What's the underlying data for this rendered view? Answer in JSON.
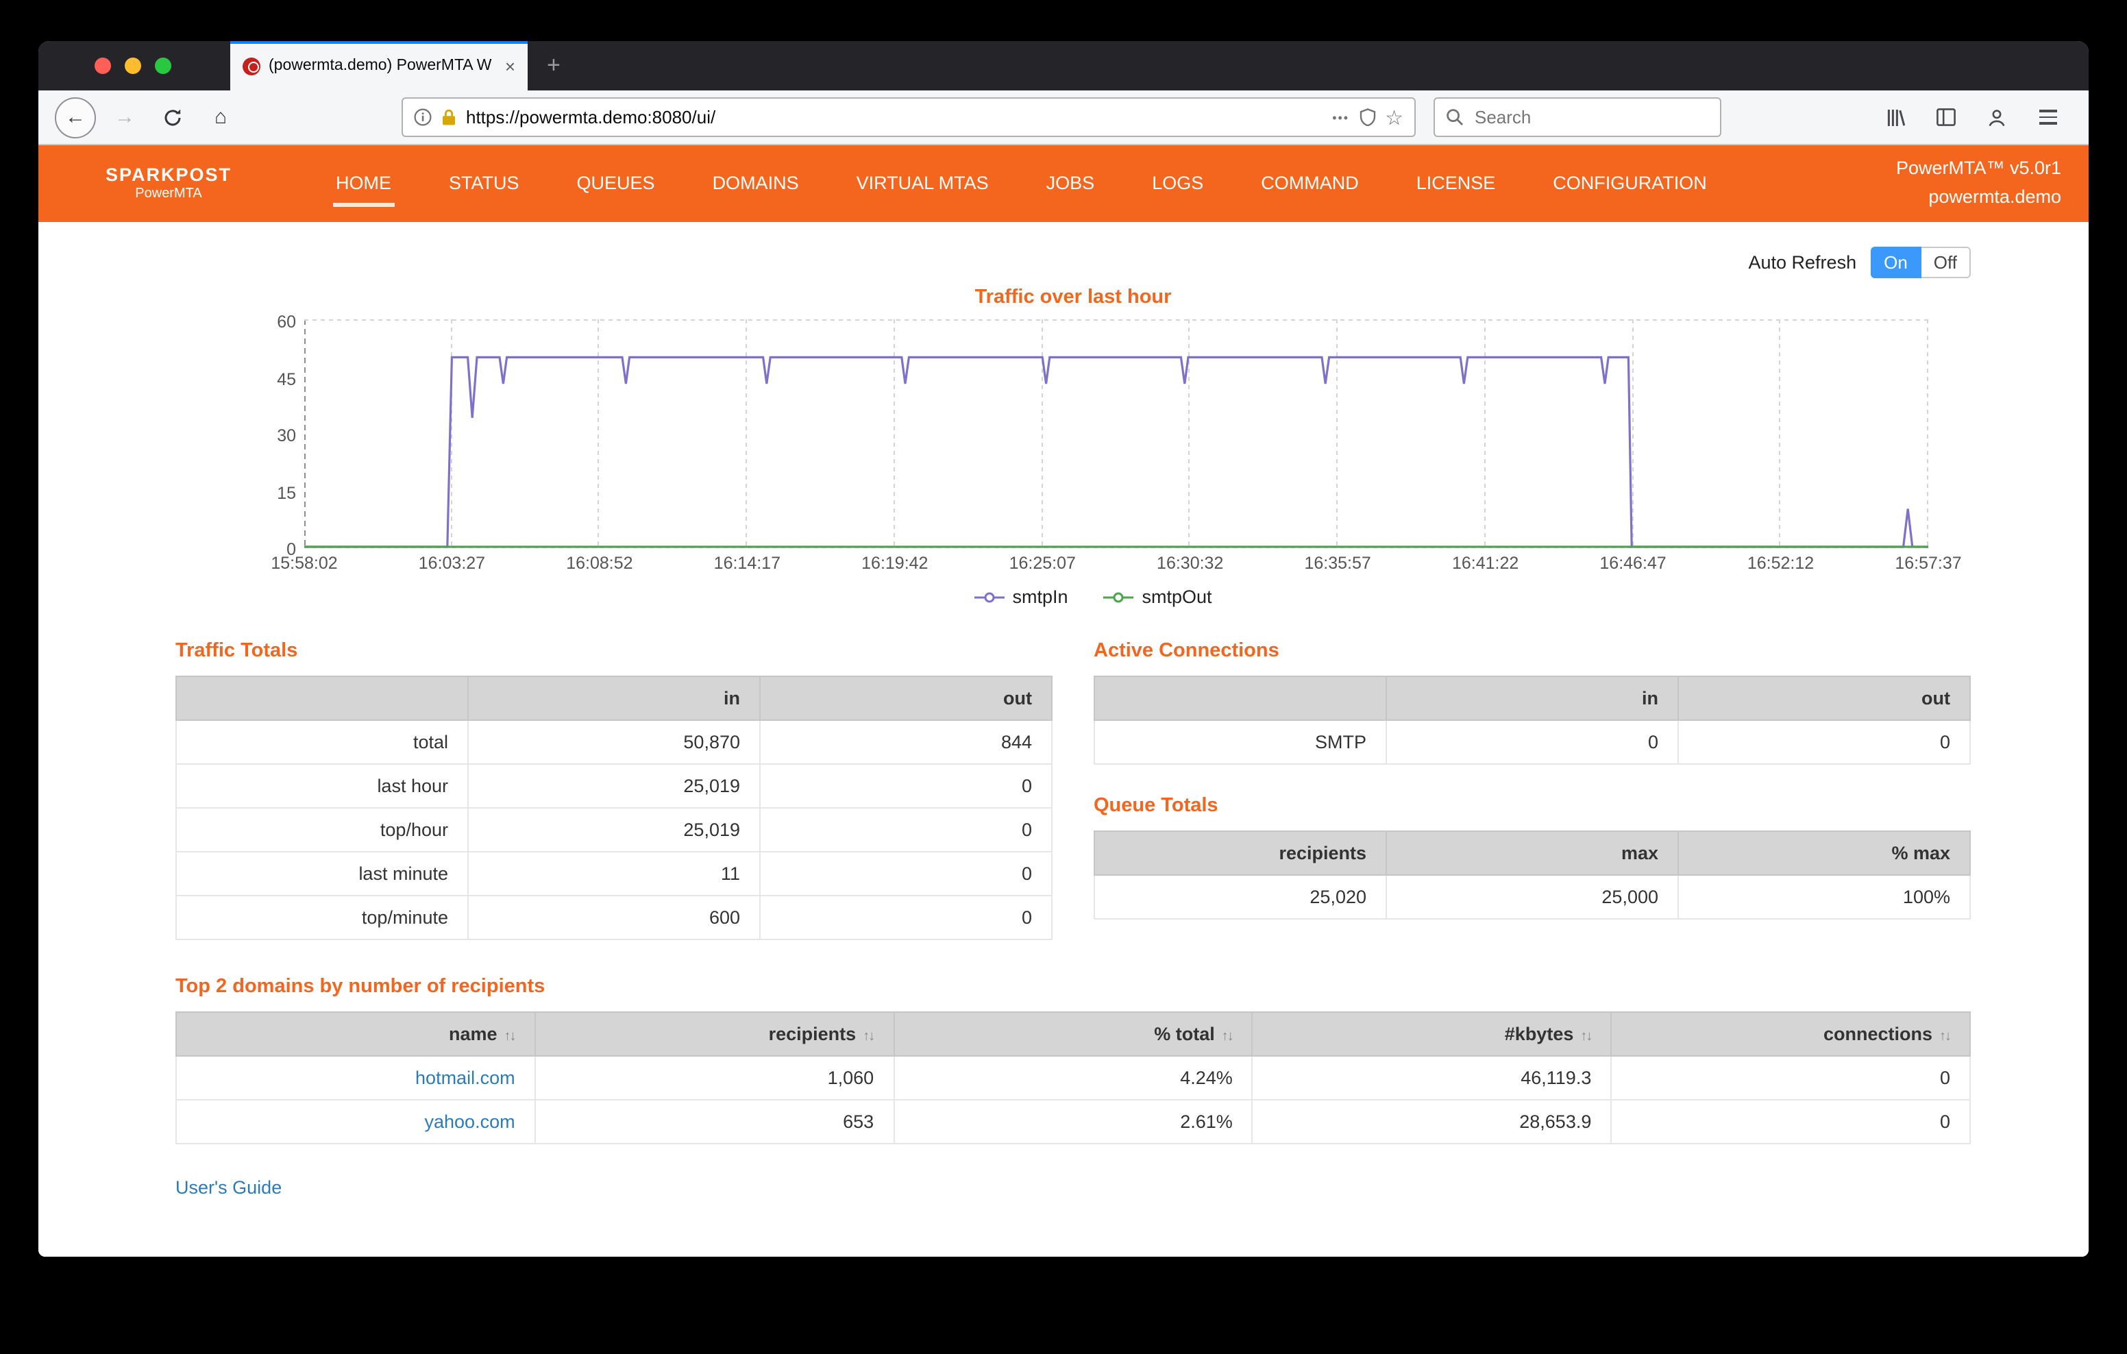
{
  "colors": {
    "accent_orange": "#f4661e",
    "link_blue": "#2b7bb9",
    "toggle_on_blue": "#3b99fc",
    "tab_highlight_blue": "#0a84ff"
  },
  "browser": {
    "tab_title": "(powermta.demo) PowerMTA W",
    "tab_close": "×",
    "new_tab": "+",
    "url": "https://powermta.demo:8080/ui/",
    "page_actions": "•••",
    "star": "☆",
    "back": "←",
    "forward": "→",
    "home": "⌂",
    "search_placeholder": "Search"
  },
  "nav": {
    "brand_line1": "SPARKPOST",
    "brand_line2": "PowerMTA",
    "items": [
      {
        "label": "HOME",
        "active": true
      },
      {
        "label": "STATUS",
        "active": false
      },
      {
        "label": "QUEUES",
        "active": false
      },
      {
        "label": "DOMAINS",
        "active": false
      },
      {
        "label": "VIRTUAL MTAS",
        "active": false
      },
      {
        "label": "JOBS",
        "active": false
      },
      {
        "label": "LOGS",
        "active": false
      },
      {
        "label": "COMMAND",
        "active": false
      },
      {
        "label": "LICENSE",
        "active": false
      },
      {
        "label": "CONFIGURATION",
        "active": false
      }
    ],
    "version": "PowerMTA™ v5.0r1",
    "hostname": "powermta.demo"
  },
  "auto_refresh": {
    "label": "Auto Refresh",
    "on": "On",
    "off": "Off",
    "state": "on"
  },
  "chart_data": {
    "type": "line",
    "title": "Traffic over last hour",
    "xlabel": "",
    "ylabel": "",
    "x_ticks": [
      "15:58:02",
      "16:03:27",
      "16:08:52",
      "16:14:17",
      "16:19:42",
      "16:25:07",
      "16:30:32",
      "16:35:57",
      "16:41:22",
      "16:46:47",
      "16:52:12",
      "16:57:37"
    ],
    "x_range_seconds": 3575,
    "y_ticks": [
      0,
      15,
      30,
      45,
      60
    ],
    "ylim": [
      0,
      60
    ],
    "grid": "vertical-dashed",
    "legend_position": "bottom",
    "series": [
      {
        "name": "smtpIn",
        "color": "#7d71cc",
        "points": [
          [
            0,
            0
          ],
          [
            315,
            0
          ],
          [
            325,
            50
          ],
          [
            360,
            50
          ],
          [
            370,
            34
          ],
          [
            380,
            50
          ],
          [
            430,
            50
          ],
          [
            438,
            43
          ],
          [
            446,
            50
          ],
          [
            700,
            50
          ],
          [
            708,
            43
          ],
          [
            716,
            50
          ],
          [
            1010,
            50
          ],
          [
            1018,
            43
          ],
          [
            1026,
            50
          ],
          [
            1315,
            50
          ],
          [
            1323,
            43
          ],
          [
            1331,
            50
          ],
          [
            1625,
            50
          ],
          [
            1633,
            43
          ],
          [
            1641,
            50
          ],
          [
            1930,
            50
          ],
          [
            1938,
            43
          ],
          [
            1946,
            50
          ],
          [
            2240,
            50
          ],
          [
            2248,
            43
          ],
          [
            2256,
            50
          ],
          [
            2545,
            50
          ],
          [
            2553,
            43
          ],
          [
            2561,
            50
          ],
          [
            2855,
            50
          ],
          [
            2863,
            43
          ],
          [
            2871,
            50
          ],
          [
            2915,
            50
          ],
          [
            2922,
            0
          ],
          [
            3520,
            0
          ],
          [
            3530,
            10
          ],
          [
            3540,
            0
          ],
          [
            3575,
            0
          ]
        ]
      },
      {
        "name": "smtpOut",
        "color": "#4aa64a",
        "points": [
          [
            0,
            0
          ],
          [
            3575,
            0
          ]
        ]
      }
    ]
  },
  "traffic_totals": {
    "title": "Traffic Totals",
    "headers": [
      "",
      "in",
      "out"
    ],
    "rows": [
      [
        "total",
        "50,870",
        "844"
      ],
      [
        "last hour",
        "25,019",
        "0"
      ],
      [
        "top/hour",
        "25,019",
        "0"
      ],
      [
        "last minute",
        "11",
        "0"
      ],
      [
        "top/minute",
        "600",
        "0"
      ]
    ]
  },
  "active_connections": {
    "title": "Active Connections",
    "headers": [
      "",
      "in",
      "out"
    ],
    "rows": [
      [
        "SMTP",
        "0",
        "0"
      ]
    ]
  },
  "queue_totals": {
    "title": "Queue Totals",
    "headers": [
      "recipients",
      "max",
      "% max"
    ],
    "rows": [
      [
        "25,020",
        "25,000",
        "100%"
      ]
    ]
  },
  "top_domains": {
    "title": "Top 2 domains by number of recipients",
    "headers": [
      "name",
      "recipients",
      "% total",
      "#kbytes",
      "connections"
    ],
    "sortable": true,
    "rows": [
      [
        "hotmail.com",
        "1,060",
        "4.24%",
        "46,119.3",
        "0"
      ],
      [
        "yahoo.com",
        "653",
        "2.61%",
        "28,653.9",
        "0"
      ]
    ]
  },
  "footer": {
    "users_guide": "User's Guide"
  }
}
